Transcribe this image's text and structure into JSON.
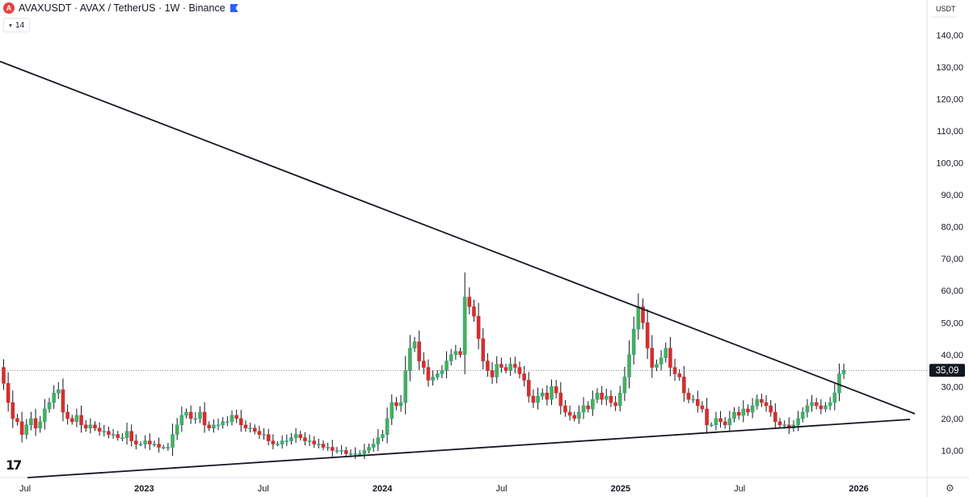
{
  "header": {
    "title": "AVAXUSDT · AVAX / TetherUS · 1W · Binance",
    "symbol_icon": "avax-logo-icon",
    "flag_icon": "flag-icon"
  },
  "indicator": {
    "label": "14"
  },
  "axis": {
    "currency": "USDT"
  },
  "current_price": {
    "label": "35,09",
    "value": 35.09
  },
  "logo": {
    "text": "17"
  },
  "colors": {
    "up": "#26a69a",
    "up_fill": "#4caf50",
    "down": "#d32f2f",
    "line": "#131722",
    "grid": "#e0e3eb"
  },
  "chart_data": {
    "type": "candlestick",
    "title": "AVAXUSDT · AVAX / TetherUS · 1W · Binance",
    "y_range": [
      0,
      148
    ],
    "y_ticks": [
      10,
      20,
      30,
      40,
      50,
      60,
      70,
      80,
      90,
      100,
      110,
      120,
      130,
      140
    ],
    "y_tick_labels": [
      "10,00",
      "20,00",
      "30,00",
      "40,00",
      "50,00",
      "60,00",
      "70,00",
      "80,00",
      "90,00",
      "100,00",
      "110,00",
      "120,00",
      "130,00",
      "140,00"
    ],
    "x_range": [
      2022.4,
      2026.3
    ],
    "x_ticks": [
      2022.5,
      2023.0,
      2023.5,
      2024.0,
      2024.5,
      2025.0,
      2025.5,
      2026.0
    ],
    "x_tick_labels": [
      "Jul",
      "2023",
      "Jul",
      "2024",
      "Jul",
      "2025",
      "Jul",
      "2026"
    ],
    "x_major": [
      false,
      true,
      false,
      true,
      false,
      true,
      false,
      true
    ],
    "start": 2022.41,
    "step": 0.01917,
    "closes": [
      31,
      25,
      20,
      19,
      15,
      18,
      20,
      17,
      19,
      23,
      25,
      28,
      29,
      22,
      20,
      19,
      21,
      18,
      17,
      18,
      17,
      16,
      16,
      15,
      15,
      14,
      14,
      16,
      13,
      12,
      12,
      13,
      12,
      12,
      11,
      11,
      11,
      15,
      18,
      21,
      22,
      20,
      20,
      22,
      18,
      17,
      18,
      18,
      19,
      19,
      21,
      20,
      18,
      17,
      17,
      16,
      15,
      15,
      13,
      12,
      12,
      13,
      13,
      14,
      15,
      14,
      13,
      13,
      12,
      12,
      11,
      11,
      10,
      10,
      10,
      9,
      9,
      9,
      9,
      10,
      11,
      12,
      14,
      15,
      20,
      25,
      24,
      25,
      35,
      42,
      44,
      38,
      36,
      32,
      33,
      34,
      35,
      38,
      40,
      41,
      40,
      58,
      55,
      52,
      45,
      38,
      35,
      33,
      37,
      36,
      35,
      37,
      36,
      34,
      32,
      27,
      25,
      27,
      28,
      26,
      30,
      28,
      24,
      22,
      21,
      20,
      22,
      24,
      23,
      26,
      28,
      26,
      27,
      25,
      24,
      28,
      33,
      40,
      48,
      55,
      50,
      42,
      36,
      37,
      39,
      42,
      36,
      34,
      33,
      28,
      26,
      26,
      24,
      23,
      18,
      18,
      20,
      19,
      18,
      20,
      22,
      21,
      23,
      22,
      24,
      26,
      25,
      24,
      22,
      19,
      18,
      18,
      17,
      18,
      20,
      22,
      24,
      25,
      24,
      23,
      24,
      25,
      28,
      34,
      35.1
    ]
  }
}
